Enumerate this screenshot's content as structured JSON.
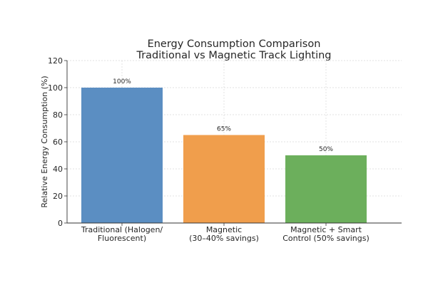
{
  "chart_data": {
    "type": "bar",
    "title": "Energy Consumption Comparison",
    "subtitle": "Traditional vs Magnetic Track Lighting",
    "xlabel": "",
    "ylabel": "Relative Energy Consumption (%)",
    "ylim": [
      0,
      120
    ],
    "yticks": [
      0,
      20,
      40,
      60,
      80,
      100,
      120
    ],
    "grid": true,
    "categories": [
      [
        "Traditional (Halogen/",
        "Fluorescent)"
      ],
      [
        "Magnetic",
        "(30–40% savings)"
      ],
      [
        "Magnetic + Smart",
        "Control (50% savings)"
      ]
    ],
    "values": [
      100,
      65,
      50
    ],
    "data_labels": [
      "100%",
      "65%",
      "50%"
    ],
    "colors": [
      "#5b8ec2",
      "#f09e4c",
      "#6caf5c"
    ]
  }
}
